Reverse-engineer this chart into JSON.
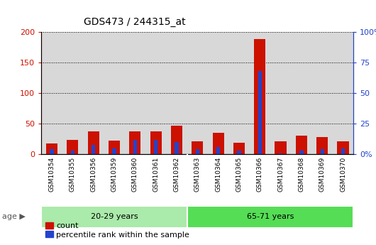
{
  "title": "GDS473 / 244315_at",
  "samples": [
    "GSM10354",
    "GSM10355",
    "GSM10356",
    "GSM10359",
    "GSM10360",
    "GSM10361",
    "GSM10362",
    "GSM10363",
    "GSM10364",
    "GSM10365",
    "GSM10366",
    "GSM10367",
    "GSM10368",
    "GSM10369",
    "GSM10370"
  ],
  "count_values": [
    18,
    24,
    38,
    23,
    37,
    38,
    47,
    21,
    35,
    19,
    188,
    21,
    30,
    28,
    21
  ],
  "percentile_values": [
    4,
    3,
    8,
    5,
    12,
    12,
    10,
    4,
    6,
    3,
    68,
    1,
    3,
    4,
    5
  ],
  "groups": [
    {
      "label": "20-29 years",
      "start": 0,
      "end": 7
    },
    {
      "label": "65-71 years",
      "start": 7,
      "end": 15
    }
  ],
  "group_colors": [
    "#aaeaaa",
    "#55dd55"
  ],
  "age_label": "age",
  "ylim_left": [
    0,
    200
  ],
  "ylim_right": [
    0,
    100
  ],
  "yticks_left": [
    0,
    50,
    100,
    150,
    200
  ],
  "yticks_right": [
    0,
    25,
    50,
    75,
    100
  ],
  "ytick_labels_left": [
    "0",
    "50",
    "100",
    "150",
    "200"
  ],
  "ytick_labels_right": [
    "0%",
    "25",
    "50",
    "75",
    "100%"
  ],
  "bar_color_count": "#cc1100",
  "bar_color_percentile": "#2244cc",
  "background_plot": "#d8d8d8",
  "legend_count": "count",
  "legend_percentile": "percentile rank within the sample",
  "count_bar_width": 0.55,
  "pct_bar_width": 0.18
}
